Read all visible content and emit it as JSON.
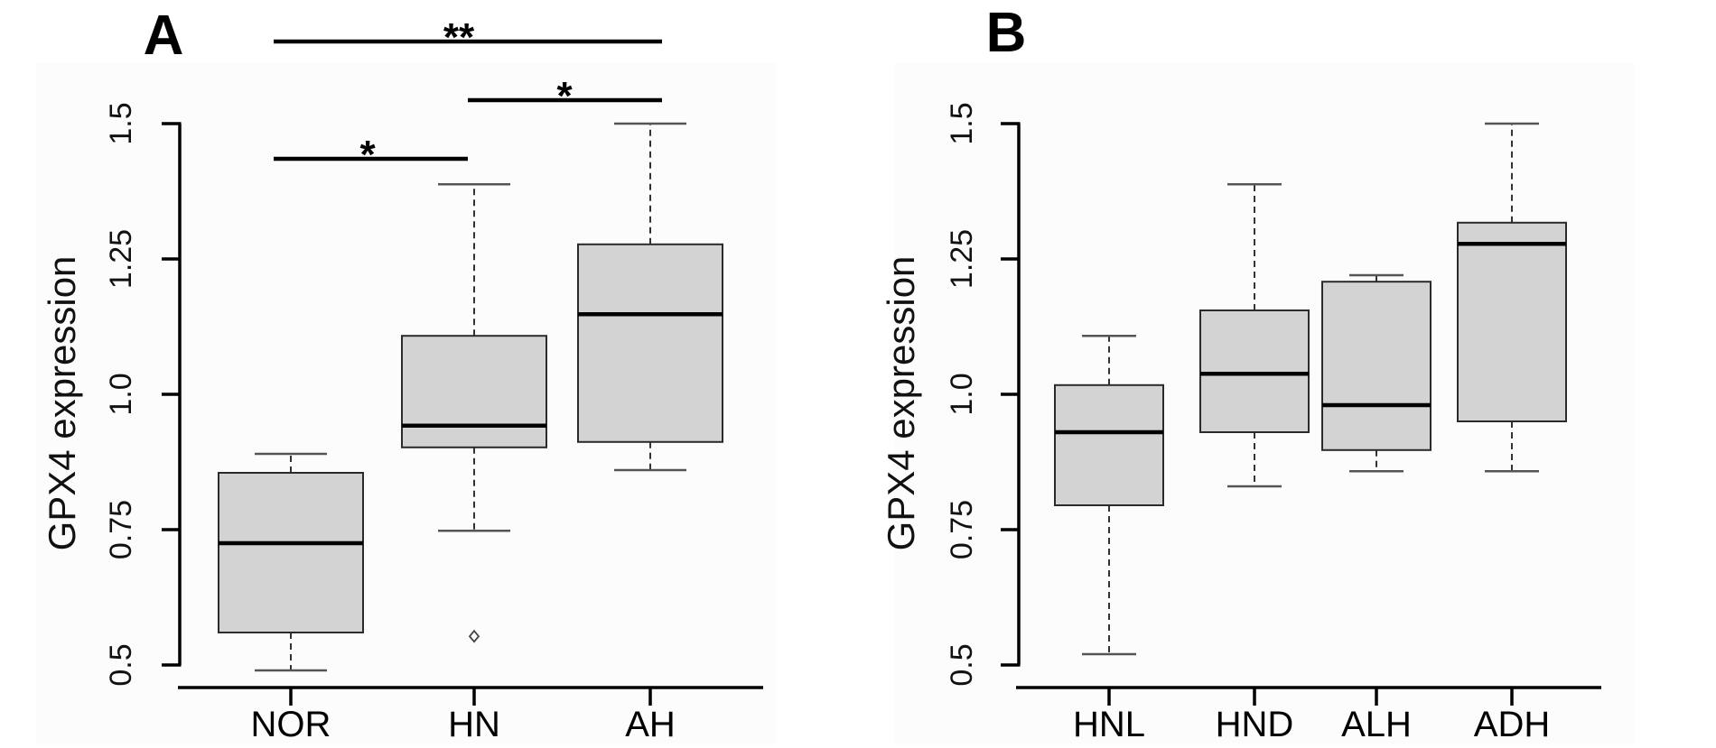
{
  "chart_data": [
    {
      "type": "box",
      "panel_label": "A",
      "title": "",
      "xlabel": "",
      "ylabel": "GPX4 expression",
      "ylim": [
        0.5,
        1.5
      ],
      "yticks": [
        0.5,
        0.75,
        1.0,
        1.25,
        1.5
      ],
      "ytick_labels": [
        "0.5",
        "0.75",
        "1.0",
        "1.25",
        "1.5"
      ],
      "grid": false,
      "categories": [
        "NOR",
        "HN",
        "AH"
      ],
      "boxes": [
        {
          "label": "NOR",
          "whisker_low": 0.49,
          "q1": 0.56,
          "median": 0.725,
          "q3": 0.855,
          "whisker_high": 0.89,
          "outliers": []
        },
        {
          "label": "HN",
          "whisker_low": 0.748,
          "q1": 0.902,
          "median": 0.942,
          "q3": 1.108,
          "whisker_high": 1.388,
          "outliers": [
            0.553
          ]
        },
        {
          "label": "AH",
          "whisker_low": 0.86,
          "q1": 0.912,
          "median": 1.148,
          "q3": 1.277,
          "whisker_high": 1.5,
          "outliers": []
        }
      ],
      "significance": [
        {
          "from": "NOR",
          "to": "AH",
          "label": "**"
        },
        {
          "from": "HN",
          "to": "AH",
          "label": "*"
        },
        {
          "from": "NOR",
          "to": "HN",
          "label": "*"
        }
      ]
    },
    {
      "type": "box",
      "panel_label": "B",
      "title": "",
      "xlabel": "",
      "ylabel": "GPX4 expression",
      "ylim": [
        0.5,
        1.5
      ],
      "yticks": [
        0.5,
        0.75,
        1.0,
        1.25,
        1.5
      ],
      "ytick_labels": [
        "0.5",
        "0.75",
        "1.0",
        "1.25",
        "1.5"
      ],
      "grid": false,
      "categories": [
        "HNL",
        "HND",
        "ALH",
        "ADH"
      ],
      "boxes": [
        {
          "label": "HNL",
          "whisker_low": 0.52,
          "q1": 0.795,
          "median": 0.93,
          "q3": 1.017,
          "whisker_high": 1.108,
          "outliers": []
        },
        {
          "label": "HND",
          "whisker_low": 0.83,
          "q1": 0.93,
          "median": 1.038,
          "q3": 1.155,
          "whisker_high": 1.388,
          "outliers": []
        },
        {
          "label": "ALH",
          "whisker_low": 0.858,
          "q1": 0.897,
          "median": 0.98,
          "q3": 1.208,
          "whisker_high": 1.22,
          "outliers": []
        },
        {
          "label": "ADH",
          "whisker_low": 0.858,
          "q1": 0.95,
          "median": 1.278,
          "q3": 1.317,
          "whisker_high": 1.5,
          "outliers": []
        }
      ],
      "significance": []
    }
  ]
}
